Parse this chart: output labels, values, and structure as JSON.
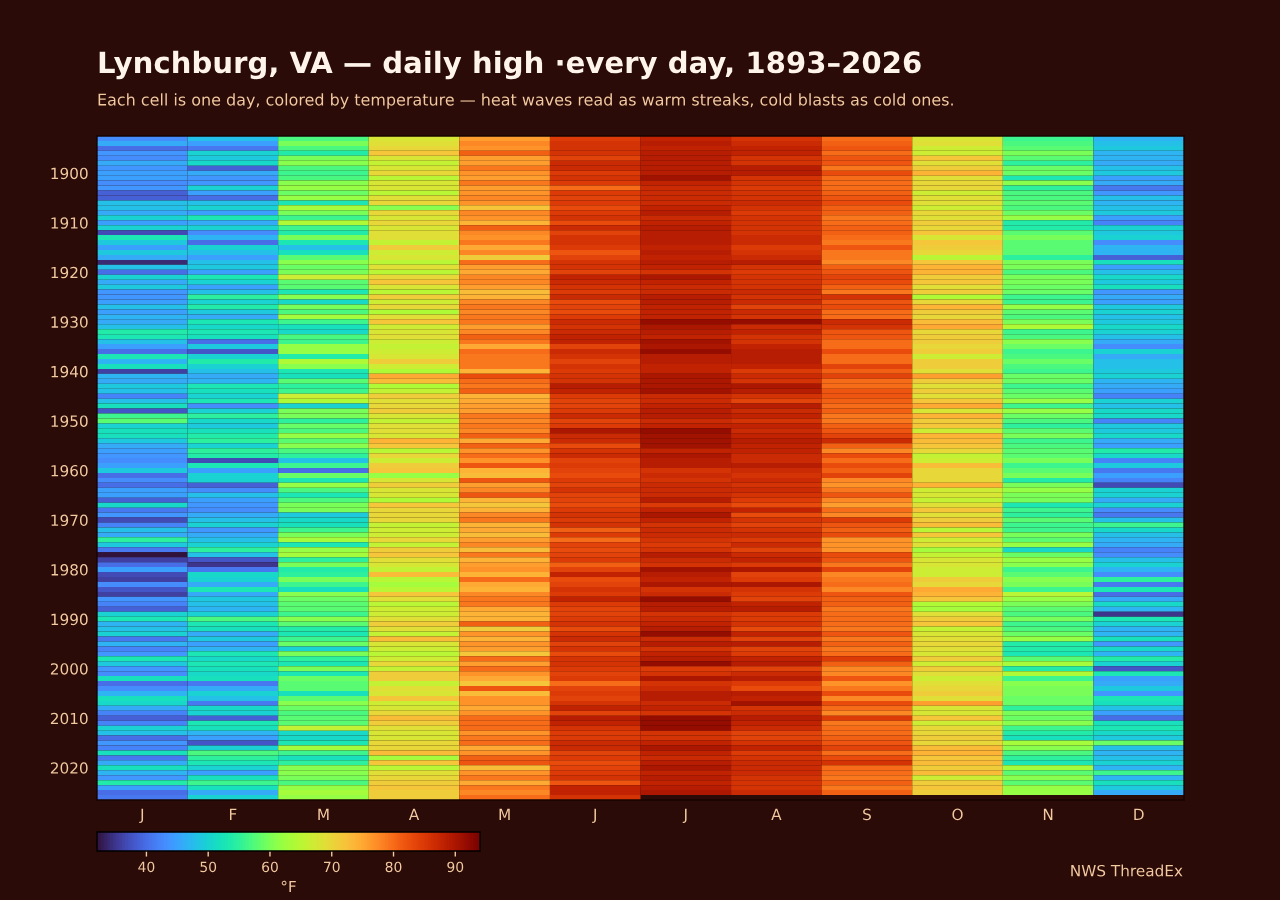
{
  "chart_data": {
    "type": "heatmap",
    "title": "Lynchburg, VA — daily high ·every day, 1893–2026",
    "subtitle": "Each cell is one day, colored by temperature — heat waves read as warm streaks, cold blasts as cold ones.",
    "categories": [
      "J",
      "F",
      "M",
      "A",
      "M",
      "J",
      "J",
      "A",
      "S",
      "O",
      "N",
      "D"
    ],
    "y_categories": [
      null,
      null,
      null,
      null,
      null,
      null,
      null,
      "1900",
      null,
      null,
      null,
      null,
      null,
      null,
      null,
      null,
      null,
      "1910",
      null,
      null,
      null,
      null,
      null,
      null,
      null,
      null,
      null,
      "1920",
      null,
      null,
      null,
      null,
      null,
      null,
      null,
      null,
      null,
      "1930",
      null,
      null,
      null,
      null,
      null,
      null,
      null,
      null,
      null,
      "1940",
      null,
      null,
      null,
      null,
      null,
      null,
      null,
      null,
      null,
      "1950",
      null,
      null,
      null,
      null,
      null,
      null,
      null,
      null,
      null,
      "1960",
      null,
      null,
      null,
      null,
      null,
      null,
      null,
      null,
      null,
      "1970",
      null,
      null,
      null,
      null,
      null,
      null,
      null,
      null,
      null,
      "1980",
      null,
      null,
      null,
      null,
      null,
      null,
      null,
      null,
      null,
      "1990",
      null,
      null,
      null,
      null,
      null,
      null,
      null,
      null,
      null,
      "2000",
      null,
      null,
      null,
      null,
      null,
      null,
      null,
      null,
      null,
      "2010",
      null,
      null,
      null,
      null,
      null,
      null,
      null,
      null,
      null,
      "2020",
      null,
      null,
      null,
      null,
      null,
      null
    ],
    "cells": [
      [
        43,
        48,
        57,
        68,
        76,
        85,
        88,
        86,
        80,
        68,
        56,
        47
      ],
      [
        46,
        45,
        60,
        69,
        78,
        86,
        89,
        87,
        81,
        69,
        57,
        48
      ],
      [
        40,
        41,
        57,
        70,
        77,
        86,
        88,
        88,
        82,
        67,
        58,
        49
      ],
      [
        44,
        50,
        54,
        72,
        81,
        86,
        89,
        88,
        80,
        67,
        60,
        47
      ],
      [
        43,
        49,
        60,
        68,
        76,
        84,
        89,
        86,
        82,
        72,
        58,
        47
      ],
      [
        46,
        51,
        61,
        66,
        76,
        87,
        89,
        86,
        82,
        69,
        55,
        46
      ],
      [
        44,
        39,
        57,
        68,
        79,
        87,
        89,
        89,
        79,
        71,
        59,
        48
      ],
      [
        45,
        46,
        56,
        70,
        77,
        85,
        89,
        89,
        83,
        74,
        59,
        49
      ],
      [
        45,
        44,
        57,
        65,
        76,
        86,
        91,
        86,
        80,
        69,
        53,
        45
      ],
      [
        43,
        44,
        61,
        68,
        79,
        85,
        88,
        86,
        80,
        70,
        61,
        46
      ],
      [
        44,
        50,
        62,
        68,
        76,
        80,
        87,
        85,
        80,
        70,
        55,
        41
      ],
      [
        39,
        45,
        59,
        65,
        77,
        85,
        87,
        86,
        81,
        67,
        57,
        44
      ],
      [
        39,
        40,
        62,
        69,
        78,
        84,
        87,
        86,
        82,
        69,
        57,
        48
      ],
      [
        48,
        48,
        53,
        70,
        77,
        85,
        87,
        87,
        83,
        69,
        58,
        47
      ],
      [
        48,
        50,
        63,
        61,
        72,
        83,
        88,
        86,
        81,
        67,
        57,
        48
      ],
      [
        46,
        45,
        60,
        70,
        78,
        85,
        89,
        85,
        81,
        70,
        59,
        49
      ],
      [
        50,
        53,
        56,
        68,
        77,
        86,
        87,
        86,
        79,
        69,
        62,
        45
      ],
      [
        45,
        46,
        64,
        70,
        74,
        83,
        88,
        86,
        80,
        71,
        54,
        42
      ],
      [
        50,
        50,
        56,
        68,
        81,
        87,
        89,
        86,
        81,
        70,
        54,
        50
      ],
      [
        37,
        43,
        54,
        69,
        78,
        84,
        89,
        86,
        81,
        72,
        58,
        49
      ],
      [
        53,
        47,
        60,
        69,
        77,
        86,
        89,
        87,
        80,
        68,
        60,
        50
      ],
      [
        49,
        40,
        53,
        66,
        79,
        86,
        89,
        87,
        79,
        72,
        58,
        43
      ],
      [
        45,
        50,
        48,
        71,
        75,
        85,
        88,
        85,
        82,
        71,
        58,
        47
      ],
      [
        49,
        48,
        52,
        67,
        78,
        82,
        89,
        86,
        79,
        70,
        58,
        47
      ],
      [
        46,
        45,
        58,
        68,
        71,
        84,
        88,
        87,
        79,
        65,
        55,
        39
      ],
      [
        34,
        48,
        61,
        65,
        80,
        86,
        89,
        89,
        78,
        72,
        60,
        52
      ],
      [
        48,
        49,
        59,
        69,
        76,
        86,
        88,
        86,
        81,
        74,
        60,
        45
      ],
      [
        40,
        45,
        60,
        65,
        75,
        84,
        86,
        85,
        82,
        74,
        57,
        48
      ],
      [
        50,
        53,
        67,
        70,
        78,
        88,
        90,
        86,
        84,
        71,
        60,
        51
      ],
      [
        46,
        50,
        58,
        72,
        78,
        87,
        88,
        86,
        83,
        72,
        60,
        49
      ],
      [
        49,
        45,
        58,
        68,
        76,
        86,
        87,
        86,
        81,
        69,
        59,
        52
      ],
      [
        44,
        48,
        53,
        65,
        73,
        85,
        87,
        87,
        79,
        71,
        59,
        44
      ],
      [
        44,
        55,
        61,
        71,
        74,
        87,
        89,
        86,
        86,
        64,
        56,
        46
      ],
      [
        45,
        50,
        51,
        67,
        78,
        83,
        89,
        87,
        82,
        70,
        56,
        45
      ],
      [
        48,
        54,
        60,
        70,
        79,
        84,
        88,
        84,
        83,
        74,
        62,
        49
      ],
      [
        45,
        49,
        57,
        64,
        78,
        83,
        88,
        87,
        80,
        71,
        58,
        50
      ],
      [
        47,
        46,
        63,
        69,
        79,
        85,
        88,
        86,
        80,
        70,
        57,
        48
      ],
      [
        46,
        53,
        56,
        72,
        79,
        87,
        92,
        92,
        87,
        73,
        60,
        49
      ],
      [
        48,
        51,
        52,
        67,
        76,
        86,
        90,
        87,
        86,
        75,
        64,
        51
      ],
      [
        54,
        53,
        51,
        68,
        78,
        87,
        89,
        88,
        82,
        70,
        56,
        50
      ],
      [
        53,
        52,
        57,
        69,
        81,
        88,
        88,
        86,
        82,
        71,
        57,
        48
      ],
      [
        48,
        40,
        56,
        67,
        79,
        88,
        91,
        86,
        80,
        71,
        61,
        46
      ],
      [
        45,
        49,
        62,
        66,
        75,
        84,
        90,
        88,
        80,
        70,
        59,
        43
      ],
      [
        40,
        38,
        62,
        67,
        80,
        87,
        92,
        89,
        83,
        71,
        56,
        50
      ],
      [
        53,
        50,
        54,
        68,
        79,
        86,
        89,
        89,
        80,
        67,
        57,
        46
      ],
      [
        47,
        54,
        64,
        71,
        79,
        84,
        89,
        89,
        80,
        71,
        59,
        48
      ],
      [
        52,
        50,
        61,
        67,
        79,
        86,
        88,
        88,
        84,
        71,
        57,
        48
      ],
      [
        36,
        48,
        53,
        64,
        74,
        85,
        88,
        85,
        81,
        69,
        56,
        49
      ],
      [
        47,
        46,
        52,
        75,
        83,
        86,
        90,
        87,
        84,
        76,
        59,
        50
      ],
      [
        46,
        47,
        58,
        73,
        80,
        86,
        90,
        86,
        80,
        71,
        59,
        47
      ],
      [
        49,
        53,
        55,
        64,
        79,
        89,
        90,
        90,
        80,
        69,
        56,
        46
      ],
      [
        48,
        52,
        56,
        66,
        81,
        88,
        91,
        89,
        82,
        71,
        58,
        45
      ],
      [
        42,
        50,
        67,
        71,
        74,
        85,
        87,
        86,
        82,
        69,
        59,
        42
      ],
      [
        48,
        53,
        64,
        69,
        75,
        84,
        87,
        84,
        81,
        72,
        62,
        50
      ],
      [
        52,
        43,
        50,
        70,
        76,
        84,
        88,
        89,
        80,
        75,
        56,
        48
      ],
      [
        38,
        50,
        60,
        71,
        76,
        85,
        89,
        87,
        81,
        68,
        62,
        51
      ],
      [
        56,
        55,
        60,
        68,
        79,
        87,
        89,
        88,
        79,
        74,
        59,
        51
      ],
      [
        58,
        51,
        55,
        66,
        78,
        84,
        87,
        86,
        79,
        71,
        57,
        42
      ],
      [
        50,
        49,
        59,
        69,
        79,
        85,
        88,
        88,
        81,
        72,
        55,
        49
      ],
      [
        52,
        52,
        57,
        69,
        78,
        90,
        92,
        87,
        82,
        67,
        58,
        49
      ],
      [
        52,
        54,
        62,
        68,
        81,
        87,
        91,
        88,
        84,
        74,
        60,
        51
      ],
      [
        49,
        55,
        58,
        74,
        75,
        87,
        91,
        89,
        87,
        73,
        56,
        46
      ],
      [
        46,
        50,
        61,
        72,
        81,
        83,
        91,
        88,
        81,
        72,
        57,
        45
      ],
      [
        45,
        55,
        57,
        65,
        77,
        86,
        88,
        88,
        78,
        70,
        58,
        54
      ],
      [
        44,
        54,
        55,
        70,
        80,
        87,
        90,
        87,
        83,
        66,
        58,
        51
      ],
      [
        43,
        37,
        48,
        67,
        77,
        84,
        89,
        87,
        80,
        67,
        60,
        42
      ],
      [
        45,
        53,
        56,
        71,
        82,
        85,
        89,
        89,
        83,
        73,
        56,
        49
      ],
      [
        49,
        45,
        40,
        72,
        74,
        84,
        86,
        87,
        81,
        70,
        58,
        41
      ],
      [
        40,
        50,
        59,
        62,
        73,
        83,
        87,
        86,
        84,
        70,
        60,
        45
      ],
      [
        43,
        50,
        53,
        68,
        82,
        85,
        86,
        87,
        78,
        70,
        54,
        42
      ],
      [
        40,
        39,
        62,
        71,
        76,
        84,
        87,
        86,
        77,
        74,
        60,
        37
      ],
      [
        45,
        43,
        57,
        68,
        78,
        86,
        87,
        87,
        79,
        67,
        62,
        50
      ],
      [
        45,
        48,
        53,
        68,
        82,
        84,
        87,
        86,
        82,
        68,
        60,
        50
      ],
      [
        39,
        45,
        57,
        64,
        74,
        84,
        89,
        85,
        78,
        66,
        60,
        46
      ],
      [
        51,
        44,
        60,
        72,
        72,
        83,
        85,
        83,
        76,
        69,
        53,
        50
      ],
      [
        41,
        43,
        60,
        70,
        74,
        85,
        88,
        88,
        80,
        72,
        56,
        43
      ],
      [
        44,
        46,
        49,
        70,
        78,
        86,
        90,
        83,
        78,
        69,
        55,
        41
      ],
      [
        37,
        48,
        51,
        70,
        79,
        85,
        88,
        86,
        85,
        71,
        58,
        48
      ],
      [
        42,
        50,
        52,
        66,
        74,
        86,
        86,
        84,
        82,
        73,
        56,
        56
      ],
      [
        48,
        44,
        56,
        67,
        75,
        81,
        87,
        86,
        81,
        65,
        56,
        51
      ],
      [
        46,
        46,
        60,
        67,
        73,
        85,
        87,
        87,
        83,
        72,
        60,
        48
      ],
      [
        55,
        48,
        63,
        70,
        76,
        80,
        86,
        85,
        77,
        67,
        58,
        47
      ],
      [
        49,
        50,
        53,
        66,
        78,
        84,
        85,
        87,
        77,
        69,
        62,
        46
      ],
      [
        41,
        55,
        62,
        71,
        73,
        83,
        86,
        84,
        77,
        63,
        51,
        42
      ],
      [
        32,
        48,
        63,
        72,
        79,
        84,
        89,
        87,
        83,
        66,
        59,
        43
      ],
      [
        36,
        38,
        55,
        69,
        74,
        85,
        87,
        88,
        82,
        68,
        62,
        48
      ],
      [
        40,
        35,
        60,
        68,
        76,
        81,
        86,
        85,
        79,
        68,
        61,
        50
      ],
      [
        45,
        41,
        54,
        66,
        77,
        84,
        91,
        90,
        84,
        67,
        56,
        47
      ],
      [
        37,
        51,
        55,
        73,
        74,
        88,
        89,
        84,
        78,
        67,
        58,
        43
      ],
      [
        36,
        50,
        60,
        65,
        80,
        83,
        88,
        85,
        79,
        71,
        61,
        55
      ],
      [
        43,
        46,
        56,
        63,
        75,
        84,
        90,
        90,
        80,
        70,
        60,
        41
      ],
      [
        38,
        53,
        52,
        65,
        74,
        86,
        86,
        86,
        78,
        75,
        56,
        53
      ],
      [
        36,
        46,
        61,
        72,
        78,
        85,
        87,
        85,
        82,
        74,
        65,
        40
      ],
      [
        44,
        49,
        59,
        69,
        79,
        88,
        92,
        84,
        81,
        72,
        62,
        46
      ],
      [
        42,
        48,
        58,
        65,
        79,
        85,
        89,
        88,
        81,
        64,
        60,
        51
      ],
      [
        39,
        47,
        58,
        67,
        75,
        84,
        89,
        89,
        79,
        63,
        58,
        47
      ],
      [
        50,
        50,
        56,
        67,
        74,
        84,
        86,
        85,
        80,
        69,
        57,
        35
      ],
      [
        53,
        57,
        61,
        69,
        74,
        85,
        87,
        85,
        80,
        71,
        60,
        53
      ],
      [
        47,
        53,
        58,
        71,
        81,
        86,
        88,
        86,
        80,
        72,
        56,
        50
      ],
      [
        48,
        52,
        54,
        69,
        71,
        83,
        89,
        83,
        79,
        66,
        57,
        47
      ],
      [
        50,
        46,
        53,
        66,
        77,
        86,
        92,
        88,
        82,
        68,
        59,
        47
      ],
      [
        41,
        49,
        56,
        73,
        74,
        87,
        87,
        84,
        79,
        69,
        62,
        52
      ],
      [
        47,
        45,
        59,
        68,
        77,
        84,
        89,
        89,
        81,
        70,
        54,
        44
      ],
      [
        42,
        47,
        50,
        67,
        76,
        86,
        86,
        84,
        79,
        69,
        54,
        51
      ],
      [
        44,
        53,
        60,
        65,
        72,
        83,
        88,
        85,
        80,
        68,
        53,
        47
      ],
      [
        53,
        51,
        55,
        67,
        80,
        86,
        89,
        88,
        85,
        71,
        58,
        54
      ],
      [
        49,
        53,
        53,
        70,
        76,
        86,
        92,
        89,
        81,
        67,
        63,
        50
      ],
      [
        44,
        52,
        60,
        66,
        80,
        85,
        85,
        84,
        78,
        71,
        54,
        38
      ],
      [
        43,
        51,
        53,
        71,
        77,
        84,
        86,
        87,
        78,
        69,
        64,
        53
      ],
      [
        52,
        52,
        59,
        71,
        75,
        85,
        90,
        89,
        82,
        67,
        56,
        45
      ],
      [
        40,
        41,
        58,
        66,
        72,
        80,
        86,
        85,
        77,
        69,
        61,
        46
      ],
      [
        43,
        46,
        58,
        69,
        82,
        84,
        87,
        83,
        79,
        70,
        60,
        49
      ],
      [
        47,
        50,
        52,
        68,
        73,
        85,
        89,
        89,
        83,
        71,
        60,
        44
      ],
      [
        52,
        48,
        58,
        72,
        77,
        84,
        89,
        88,
        78,
        69,
        59,
        53
      ],
      [
        51,
        41,
        61,
        67,
        77,
        86,
        87,
        91,
        83,
        76,
        59,
        52
      ],
      [
        46,
        51,
        59,
        68,
        75,
        88,
        88,
        86,
        80,
        68,
        55,
        48
      ],
      [
        42,
        50,
        57,
        70,
        77,
        84,
        86,
        87,
        78,
        68,
        60,
        45
      ],
      [
        39,
        39,
        58,
        73,
        80,
        89,
        92,
        89,
        85,
        72,
        59,
        40
      ],
      [
        42,
        53,
        58,
        71,
        80,
        88,
        92,
        88,
        79,
        67,
        61,
        52
      ],
      [
        50,
        52,
        66,
        69,
        80,
        86,
        92,
        87,
        80,
        70,
        56,
        53
      ],
      [
        48,
        47,
        51,
        68,
        77,
        85,
        86,
        84,
        80,
        70,
        54,
        51
      ],
      [
        40,
        45,
        51,
        68,
        79,
        85,
        86,
        84,
        81,
        71,
        52,
        49
      ],
      [
        44,
        38,
        53,
        70,
        80,
        87,
        88,
        86,
        82,
        70,
        63,
        59
      ],
      [
        42,
        50,
        63,
        70,
        75,
        87,
        90,
        88,
        84,
        73,
        61,
        48
      ],
      [
        52,
        57,
        56,
        73,
        77,
        84,
        88,
        85,
        80,
        74,
        57,
        47
      ],
      [
        41,
        55,
        52,
        63,
        81,
        85,
        87,
        86,
        83,
        72,
        55,
        48
      ],
      [
        46,
        53,
        55,
        72,
        82,
        83,
        89,
        87,
        86,
        73,
        53,
        50
      ],
      [
        52,
        50,
        61,
        65,
        73,
        84,
        90,
        87,
        80,
        71,
        63,
        47
      ],
      [
        47,
        45,
        61,
        69,
        77,
        85,
        88,
        87,
        80,
        73,
        58,
        56
      ],
      [
        44,
        52,
        60,
        70,
        79,
        86,
        89,
        86,
        79,
        67,
        61,
        47
      ],
      [
        54,
        56,
        57,
        71,
        75,
        82,
        88,
        86,
        81,
        71,
        58,
        52
      ],
      [
        45,
        52,
        62,
        72,
        79,
        88,
        89,
        86,
        79,
        72,
        62,
        49
      ],
      [
        40,
        46,
        63,
        71,
        78,
        88,
        90,
        87,
        81,
        71,
        62,
        46
      ],
      [
        41,
        50,
        62,
        71,
        80,
        86,
        null,
        null,
        null,
        null,
        null,
        null
      ]
    ],
    "clim": [
      32,
      94
    ],
    "cticks": [
      40,
      50,
      60,
      70,
      80,
      90
    ],
    "clabel": "°F",
    "annotations": [
      "NWS ThreadEx"
    ]
  }
}
